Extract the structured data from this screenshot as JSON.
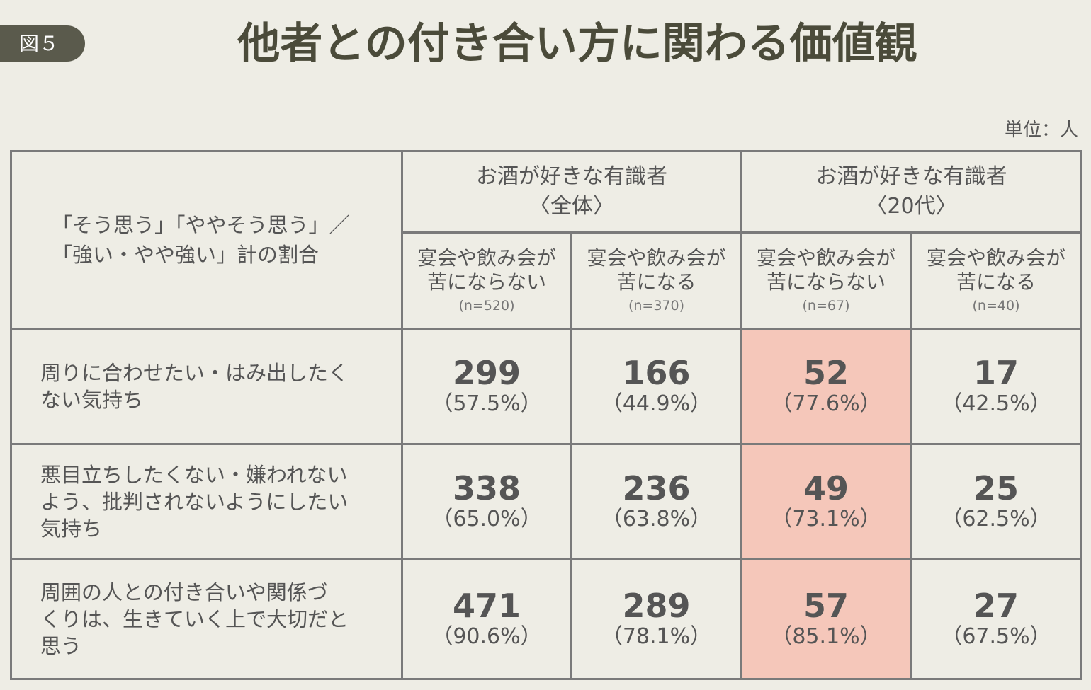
{
  "figure_label": "図５",
  "title": "他者との付き合い方に関わる価値観",
  "unit": "単位：人",
  "highlight_color": "#f5c7ba",
  "chart_data": {
    "type": "table",
    "corner_label": [
      "「そう思う」「ややそう思う」／",
      "「強い・やや強い」計の割合"
    ],
    "groups": [
      {
        "label": [
          "お酒が好きな有識者",
          "〈全体〉"
        ]
      },
      {
        "label": [
          "お酒が好きな有識者",
          "〈20代〉"
        ]
      }
    ],
    "columns": [
      {
        "label": [
          "宴会や飲み会が",
          "苦にならない"
        ],
        "n": "(n=520)"
      },
      {
        "label": [
          "宴会や飲み会が",
          "苦になる"
        ],
        "n": "(n=370)"
      },
      {
        "label": [
          "宴会や飲み会が",
          "苦にならない"
        ],
        "n": "(n=67)"
      },
      {
        "label": [
          "宴会や飲み会が",
          "苦になる"
        ],
        "n": "(n=40)"
      }
    ],
    "rows": [
      {
        "label": [
          "周りに合わせたい・はみ出したく",
          "ない気持ち"
        ],
        "values": [
          299,
          166,
          52,
          17
        ],
        "percents": [
          "（57.5%）",
          "（44.9%）",
          "（77.6%）",
          "（42.5%）"
        ]
      },
      {
        "label": [
          "悪目立ちしたくない・嫌われない",
          "よう、批判されないようにしたい",
          "気持ち"
        ],
        "values": [
          338,
          236,
          49,
          25
        ],
        "percents": [
          "（65.0%）",
          "（63.8%）",
          "（73.1%）",
          "（62.5%）"
        ]
      },
      {
        "label": [
          "周囲の人との付き合いや関係づ",
          "くりは、生きていく上で大切だと",
          "思う"
        ],
        "values": [
          471,
          289,
          57,
          27
        ],
        "percents": [
          "（90.6%）",
          "（78.1%）",
          "（85.1%）",
          "（67.5%）"
        ]
      }
    ],
    "highlighted_column": 2
  }
}
